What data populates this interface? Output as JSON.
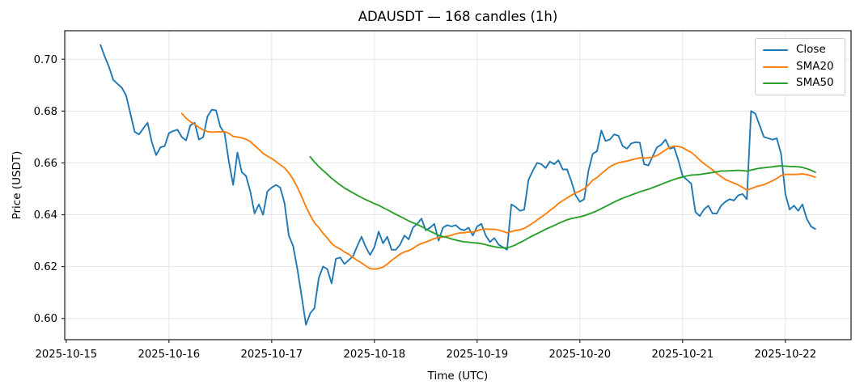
{
  "chart_data": {
    "type": "line",
    "title": "ADAUSDT — 168 candles (1h)",
    "xlabel": "Time (UTC)",
    "ylabel": "Price (USDT)",
    "x_time": {
      "start_utc": "2025-10-15 08:00",
      "step_hours": 1,
      "count": 168
    },
    "series": [
      {
        "name": "Close",
        "color": "#1f77b4",
        "values": [
          0.7055,
          0.701,
          0.697,
          0.692,
          0.6905,
          0.689,
          0.686,
          0.679,
          0.672,
          0.671,
          0.6733,
          0.6755,
          0.668,
          0.663,
          0.666,
          0.6665,
          0.6715,
          0.6723,
          0.6728,
          0.67,
          0.6687,
          0.6745,
          0.6755,
          0.669,
          0.67,
          0.678,
          0.6805,
          0.6803,
          0.674,
          0.6715,
          0.6605,
          0.6515,
          0.664,
          0.6565,
          0.655,
          0.649,
          0.6405,
          0.644,
          0.64,
          0.649,
          0.6505,
          0.6515,
          0.6505,
          0.6445,
          0.632,
          0.628,
          0.619,
          0.6085,
          0.5975,
          0.602,
          0.604,
          0.6155,
          0.62,
          0.619,
          0.6135,
          0.623,
          0.6235,
          0.621,
          0.6225,
          0.624,
          0.628,
          0.6315,
          0.6275,
          0.6245,
          0.6275,
          0.6335,
          0.629,
          0.6315,
          0.6265,
          0.6265,
          0.6285,
          0.632,
          0.6305,
          0.635,
          0.6365,
          0.6385,
          0.634,
          0.635,
          0.6365,
          0.63,
          0.635,
          0.636,
          0.6355,
          0.636,
          0.6345,
          0.634,
          0.635,
          0.632,
          0.6355,
          0.6365,
          0.632,
          0.6295,
          0.631,
          0.6285,
          0.6275,
          0.6265,
          0.644,
          0.643,
          0.6415,
          0.642,
          0.6535,
          0.657,
          0.66,
          0.6595,
          0.658,
          0.6605,
          0.6595,
          0.661,
          0.6575,
          0.6575,
          0.653,
          0.6475,
          0.645,
          0.646,
          0.657,
          0.6635,
          0.6645,
          0.6725,
          0.6685,
          0.669,
          0.671,
          0.6705,
          0.6665,
          0.6655,
          0.6675,
          0.668,
          0.6678,
          0.6595,
          0.659,
          0.6625,
          0.666,
          0.667,
          0.669,
          0.6655,
          0.666,
          0.661,
          0.655,
          0.6535,
          0.652,
          0.641,
          0.6395,
          0.642,
          0.6435,
          0.6405,
          0.6405,
          0.6435,
          0.645,
          0.646,
          0.6455,
          0.6475,
          0.648,
          0.646,
          0.68,
          0.679,
          0.6745,
          0.67,
          0.6695,
          0.669,
          0.6695,
          0.6635,
          0.648,
          0.642,
          0.6435,
          0.6415,
          0.644,
          0.6385,
          0.6355,
          0.6345
        ]
      },
      {
        "name": "SMA20",
        "color": "#ff7f0e",
        "derived": "moving_average",
        "window": 20,
        "source": "Close"
      },
      {
        "name": "SMA50",
        "color": "#2ca02c",
        "derived": "moving_average",
        "window": 50,
        "source": "Close"
      }
    ],
    "xticks": {
      "labels": [
        "2025-10-15",
        "2025-10-16",
        "2025-10-17",
        "2025-10-18",
        "2025-10-19",
        "2025-10-20",
        "2025-10-21",
        "2025-10-22"
      ],
      "hour_index": [
        -8,
        16,
        40,
        64,
        88,
        112,
        136,
        160
      ]
    },
    "yticks": [
      0.6,
      0.62,
      0.64,
      0.66,
      0.68,
      0.7
    ],
    "ylim": [
      0.5918,
      0.711
    ],
    "grid": true,
    "legend_position": "upper right",
    "colors": {
      "close": "#1f77b4",
      "sma20": "#ff7f0e",
      "sma50": "#2ca02c",
      "grid": "#e6e6e6",
      "spine": "#2b2b2b"
    }
  }
}
